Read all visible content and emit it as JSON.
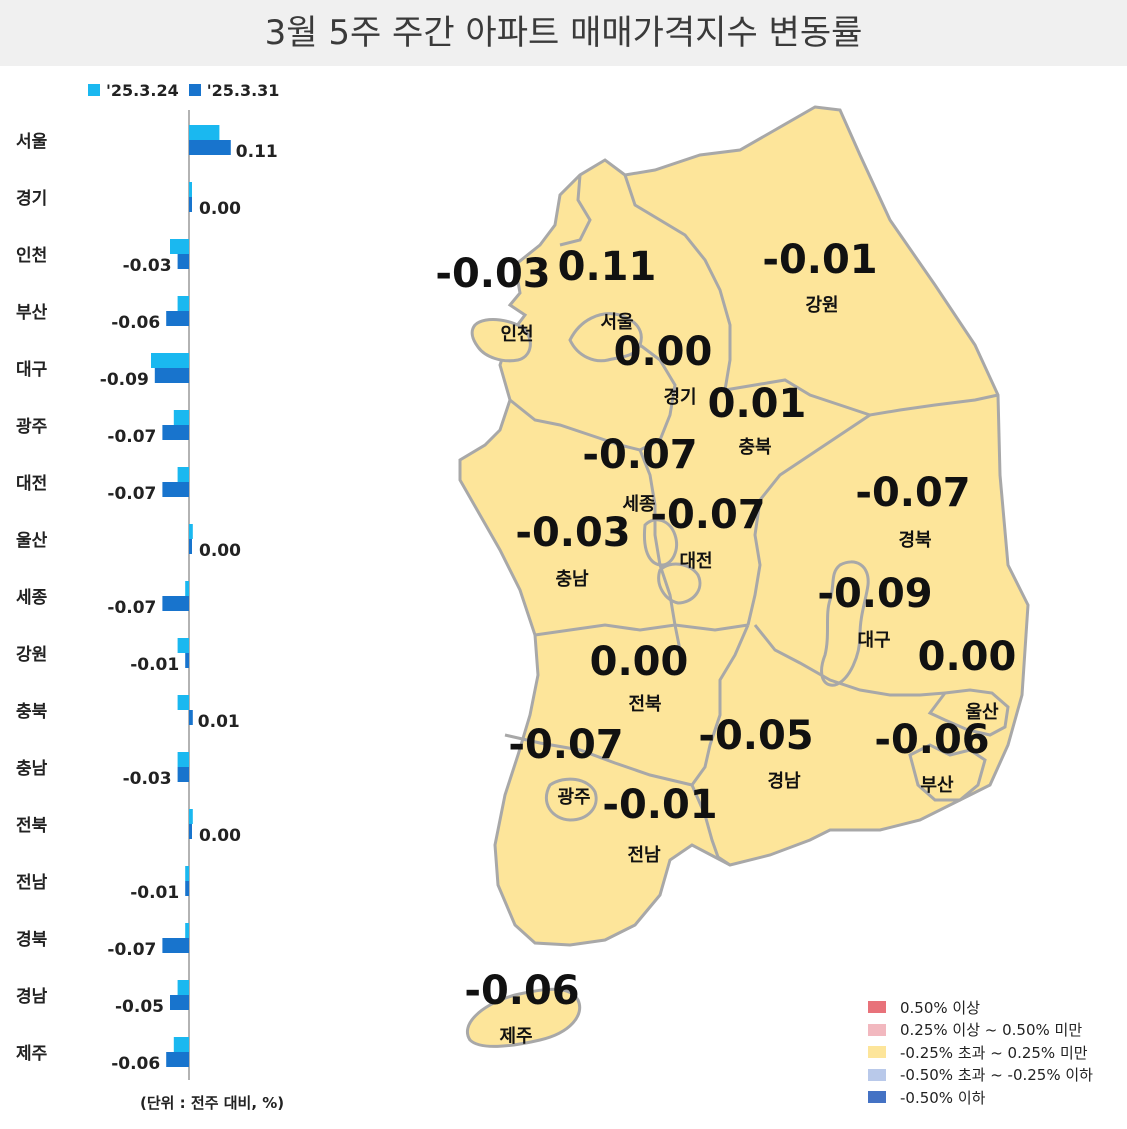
{
  "title": "3월 5주 주간 아파트 매매가격지수 변동률",
  "legend": [
    {
      "label": "'25.3.24",
      "color": "#1ab8f0"
    },
    {
      "label": "'25.3.31",
      "color": "#1874cd"
    }
  ],
  "unit_note": "(단위 : 전주 대비, %)",
  "chart_data": {
    "type": "bar",
    "orientation": "horizontal",
    "categories": [
      "서울",
      "경기",
      "인천",
      "부산",
      "대구",
      "광주",
      "대전",
      "울산",
      "세종",
      "강원",
      "충북",
      "충남",
      "전북",
      "전남",
      "경북",
      "경남",
      "제주"
    ],
    "series": [
      {
        "name": "'25.3.24",
        "values": [
          0.08,
          0.0,
          -0.05,
          -0.03,
          -0.1,
          -0.04,
          -0.03,
          0.01,
          -0.01,
          -0.03,
          -0.03,
          -0.03,
          0.01,
          -0.01,
          -0.01,
          -0.03,
          -0.04
        ]
      },
      {
        "name": "'25.3.31",
        "values": [
          0.11,
          0.0,
          -0.03,
          -0.06,
          -0.09,
          -0.07,
          -0.07,
          0.0,
          -0.07,
          -0.01,
          0.01,
          -0.03,
          0.0,
          -0.01,
          -0.07,
          -0.05,
          -0.06
        ]
      }
    ],
    "value_labels": [
      "0.11",
      "0.00",
      "-0.03",
      "-0.06",
      "-0.09",
      "-0.07",
      "-0.07",
      "0.00",
      "-0.07",
      "-0.01",
      "0.01",
      "-0.03",
      "0.00",
      "-0.01",
      "-0.07",
      "-0.05",
      "-0.06"
    ],
    "colors": [
      "#1ab8f0",
      "#1874cd"
    ]
  },
  "map_regions": [
    {
      "name": "인천",
      "value": "-0.03"
    },
    {
      "name": "서울",
      "value": "0.11"
    },
    {
      "name": "강원",
      "value": "-0.01"
    },
    {
      "name": "경기",
      "value": "0.00"
    },
    {
      "name": "충북",
      "value": "0.01"
    },
    {
      "name": "세종",
      "value": "-0.07"
    },
    {
      "name": "대전",
      "value": "-0.07"
    },
    {
      "name": "충남",
      "value": "-0.03"
    },
    {
      "name": "경북",
      "value": "-0.07"
    },
    {
      "name": "대구",
      "value": "-0.09"
    },
    {
      "name": "울산",
      "value": "0.00"
    },
    {
      "name": "전북",
      "value": "0.00"
    },
    {
      "name": "경남",
      "value": "-0.05"
    },
    {
      "name": "부산",
      "value": "-0.06"
    },
    {
      "name": "광주",
      "value": "-0.07"
    },
    {
      "name": "전남",
      "value": "-0.01"
    },
    {
      "name": "제주",
      "value": "-0.06"
    }
  ],
  "map_legend": [
    {
      "label": "0.50% 이상",
      "color": "#e8727a"
    },
    {
      "label": "0.25% 이상 ~ 0.50% 미만",
      "color": "#f2b8bf"
    },
    {
      "label": "-0.25% 초과 ~ 0.25% 미만",
      "color": "#fde59a"
    },
    {
      "label": "-0.50% 초과 ~ -0.25% 이하",
      "color": "#b9c9ea"
    },
    {
      "label": "-0.50% 이하",
      "color": "#4472c4"
    }
  ],
  "map_fill": "#fde59a",
  "map_border": "#a8a8a8"
}
